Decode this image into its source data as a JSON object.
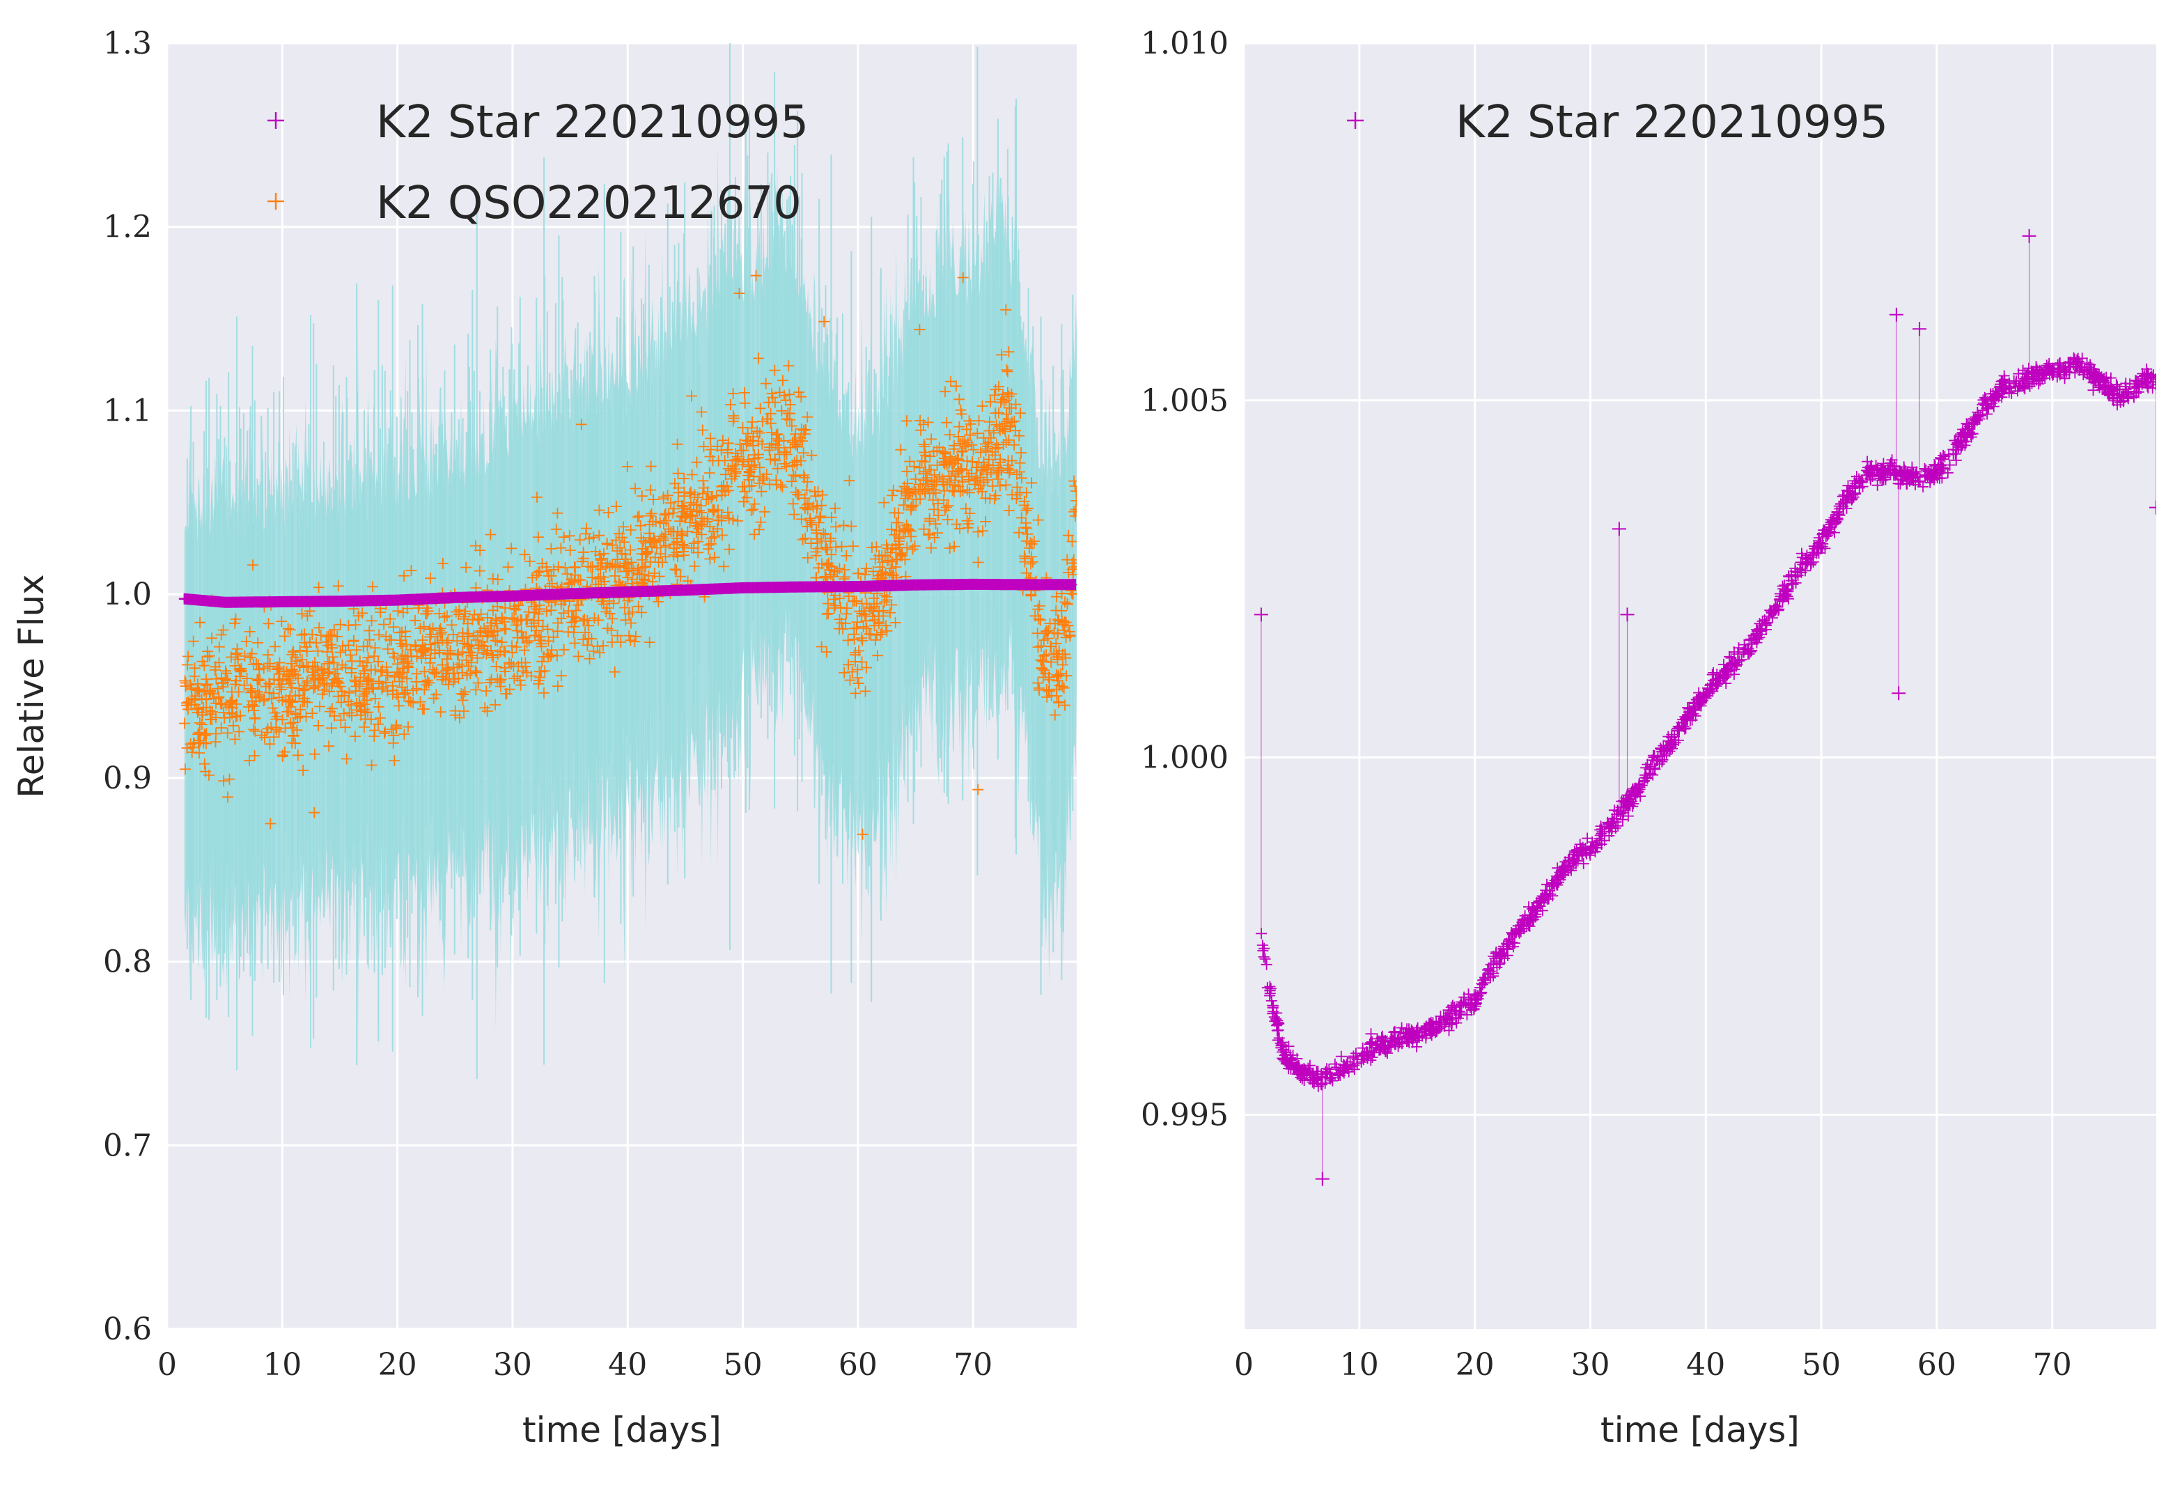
{
  "colors": {
    "axes_bg": "#eaeaf2",
    "grid": "#ffffff",
    "star": "#bf00bf",
    "qso": "#ff7f0e",
    "qso_err": "#9adcdf",
    "text": "#262626"
  },
  "chart_data": [
    {
      "type": "scatter",
      "title": "",
      "xlabel": "time [days]",
      "ylabel": "Relative Flux",
      "xlim": [
        0,
        79
      ],
      "ylim": [
        0.6,
        1.3
      ],
      "xticks": [
        "0",
        "10",
        "20",
        "30",
        "40",
        "50",
        "60",
        "70"
      ],
      "yticks": [
        "0.6",
        "0.7",
        "0.8",
        "0.9",
        "1.0",
        "1.1",
        "1.2",
        "1.3"
      ],
      "grid": true,
      "legend_position": "upper-left",
      "series": [
        {
          "name": "K2 Star 220210995",
          "marker": "+",
          "points": [
            [
              1.5,
              0.9975
            ],
            [
              5,
              0.9956
            ],
            [
              10,
              0.9959
            ],
            [
              15,
              0.9962
            ],
            [
              20,
              0.9968
            ],
            [
              25,
              0.9982
            ],
            [
              30,
              0.999
            ],
            [
              35,
              1.0003
            ],
            [
              40,
              1.0013
            ],
            [
              45,
              1.0022
            ],
            [
              50,
              1.0035
            ],
            [
              55,
              1.004
            ],
            [
              60,
              1.0042
            ],
            [
              65,
              1.0051
            ],
            [
              70,
              1.0054
            ],
            [
              75,
              1.0052
            ],
            [
              79,
              1.0053
            ]
          ]
        },
        {
          "name": "K2 QSO220212670",
          "marker": "+",
          "error_band": true,
          "points": [
            [
              1.5,
              0.94
            ],
            [
              5,
              0.945
            ],
            [
              10,
              0.95
            ],
            [
              15,
              0.955
            ],
            [
              20,
              0.96
            ],
            [
              25,
              0.97
            ],
            [
              28,
              0.975
            ],
            [
              30,
              0.98
            ],
            [
              35,
              1.0
            ],
            [
              40,
              1.01
            ],
            [
              45,
              1.035
            ],
            [
              50,
              1.07
            ],
            [
              54,
              1.09
            ],
            [
              57,
              1.02
            ],
            [
              60,
              0.98
            ],
            [
              62,
              1.0
            ],
            [
              65,
              1.06
            ],
            [
              70,
              1.07
            ],
            [
              73,
              1.09
            ],
            [
              75,
              1.02
            ],
            [
              76,
              0.96
            ],
            [
              78,
              0.97
            ],
            [
              79,
              1.05
            ]
          ]
        }
      ]
    },
    {
      "type": "scatter",
      "title": "",
      "xlabel": "time [days]",
      "ylabel": "",
      "xlim": [
        0,
        79
      ],
      "ylim": [
        0.992,
        1.01
      ],
      "xticks": [
        "0",
        "10",
        "20",
        "30",
        "40",
        "50",
        "60",
        "70"
      ],
      "yticks": [
        "0.995",
        "1.000",
        "1.005",
        "1.010"
      ],
      "grid": true,
      "legend_position": "upper-left",
      "series": [
        {
          "name": "K2 Star 220210995",
          "marker": "+",
          "points": [
            [
              1.5,
              0.9975
            ],
            [
              2.5,
              0.9965
            ],
            [
              3.5,
              0.9958
            ],
            [
              5,
              0.9956
            ],
            [
              7,
              0.9955
            ],
            [
              10,
              0.9958
            ],
            [
              12,
              0.996
            ],
            [
              15,
              0.9961
            ],
            [
              17,
              0.9963
            ],
            [
              20,
              0.9966
            ],
            [
              22,
              0.9972
            ],
            [
              25,
              0.9978
            ],
            [
              28,
              0.9985
            ],
            [
              30,
              0.9987
            ],
            [
              33,
              0.9993
            ],
            [
              36,
              1.0
            ],
            [
              40,
              1.0009
            ],
            [
              44,
              1.0016
            ],
            [
              48,
              1.0026
            ],
            [
              50,
              1.003
            ],
            [
              52,
              1.0036
            ],
            [
              54,
              1.004
            ],
            [
              56,
              1.004
            ],
            [
              58,
              1.0039
            ],
            [
              60,
              1.004
            ],
            [
              62,
              1.0044
            ],
            [
              64,
              1.0049
            ],
            [
              66,
              1.0052
            ],
            [
              68,
              1.0053
            ],
            [
              70,
              1.0054
            ],
            [
              72,
              1.0055
            ],
            [
              74,
              1.0053
            ],
            [
              76,
              1.005
            ],
            [
              78,
              1.0053
            ]
          ],
          "outliers": [
            [
              1.5,
              1.002
            ],
            [
              6.8,
              0.9941
            ],
            [
              32.5,
              1.0032
            ],
            [
              33.2,
              1.002
            ],
            [
              56.5,
              1.0062
            ],
            [
              56.7,
              1.0009
            ],
            [
              58.5,
              1.006
            ],
            [
              68,
              1.0073
            ],
            [
              79,
              1.0035
            ]
          ]
        }
      ]
    }
  ]
}
